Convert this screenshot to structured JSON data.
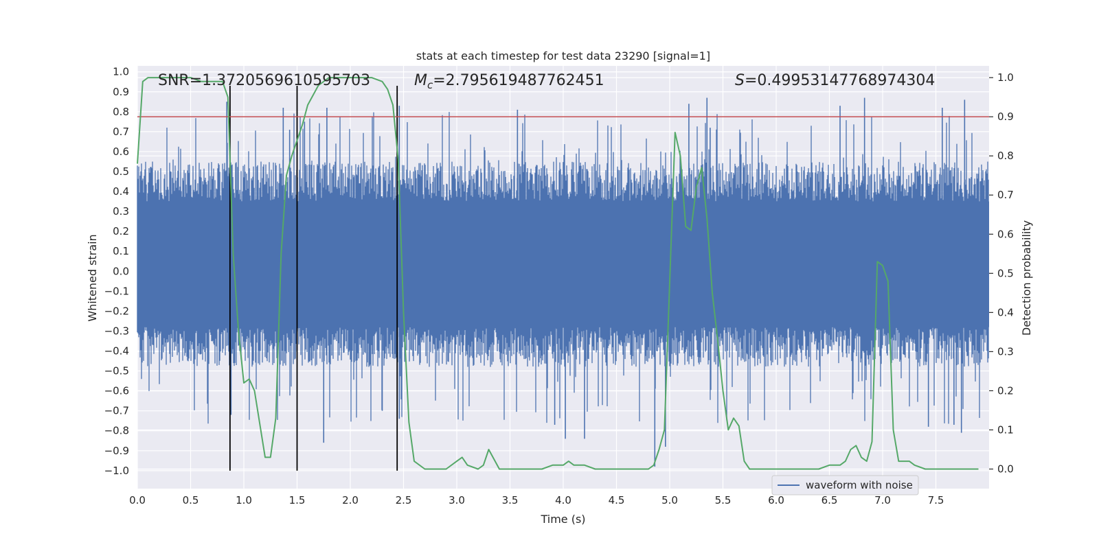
{
  "chart_data": {
    "type": "line",
    "title": "stats at each timestep for test data 23290 [signal=1]",
    "xlabel": "Time (s)",
    "ylabel": "Whitened strain",
    "y2label": "Detection probability",
    "xlim": [
      0.0,
      8.0
    ],
    "ylim": [
      -1.09,
      1.03
    ],
    "y2lim": [
      -0.05,
      1.03
    ],
    "x_ticks": [
      0.0,
      0.5,
      1.0,
      1.5,
      2.0,
      2.5,
      3.0,
      3.5,
      4.0,
      4.5,
      5.0,
      5.5,
      6.0,
      6.5,
      7.0,
      7.5
    ],
    "x_tick_labels": [
      "0.0",
      "0.5",
      "1.0",
      "1.5",
      "2.0",
      "2.5",
      "3.0",
      "3.5",
      "4.0",
      "4.5",
      "5.0",
      "5.5",
      "6.0",
      "6.5",
      "7.0",
      "7.5"
    ],
    "y_ticks": [
      1.0,
      0.9,
      0.8,
      0.7,
      0.6,
      0.5,
      0.4,
      0.3,
      0.2,
      0.1,
      0.0,
      -0.1,
      -0.2,
      -0.3,
      -0.4,
      -0.5,
      -0.6,
      -0.7,
      -0.8,
      -0.9,
      -1.0
    ],
    "y_tick_labels": [
      "1.0",
      "0.9",
      "0.8",
      "0.7",
      "0.6",
      "0.5",
      "0.4",
      "0.3",
      "0.2",
      "0.1",
      "0.0",
      "−0.1",
      "−0.2",
      "−0.3",
      "−0.4",
      "−0.5",
      "−0.6",
      "−0.7",
      "−0.8",
      "−0.9",
      "−1.0"
    ],
    "y2_ticks": [
      1.0,
      0.9,
      0.8,
      0.7,
      0.6,
      0.5,
      0.4,
      0.3,
      0.2,
      0.1,
      0.0
    ],
    "y2_tick_labels": [
      "1.0",
      "0.9",
      "0.8",
      "0.7",
      "0.6",
      "0.5",
      "0.4",
      "0.3",
      "0.2",
      "0.1",
      "0.0"
    ],
    "annotations": {
      "snr": "SNR=1.3720569610595703",
      "mc_symbol": "M",
      "mc_sub": "c",
      "mc_value": "=2.795619487762451",
      "s_symbol": "S",
      "s_value": "=0.49953147768974304"
    },
    "threshold": {
      "axis": "y2",
      "value": 0.9,
      "color": "#c44e52"
    },
    "vertical_lines": [
      {
        "x": 0.87,
        "ymin": -1.0,
        "ymax": 0.93,
        "color": "#000000"
      },
      {
        "x": 1.5,
        "ymin": -1.0,
        "ymax": 0.93,
        "color": "#000000"
      },
      {
        "x": 2.44,
        "ymin": -1.0,
        "ymax": 0.93,
        "color": "#000000"
      }
    ],
    "series": [
      {
        "name": "waveform with noise",
        "axis": "y",
        "color": "#4c72b0",
        "kind": "noise-envelope",
        "core_min": -0.43,
        "core_max": 0.5,
        "peaks": [
          {
            "x": 0.84,
            "y": 0.85
          },
          {
            "x": 0.88,
            "y": -0.72
          },
          {
            "x": 1.37,
            "y": 0.82
          },
          {
            "x": 1.43,
            "y": 0.71
          },
          {
            "x": 1.57,
            "y": 0.75
          },
          {
            "x": 1.75,
            "y": -0.86
          },
          {
            "x": 1.78,
            "y": 0.82
          },
          {
            "x": 2.3,
            "y": -0.7
          },
          {
            "x": 2.46,
            "y": 0.83
          },
          {
            "x": 2.46,
            "y": -0.74
          },
          {
            "x": 3.57,
            "y": 0.81
          },
          {
            "x": 3.92,
            "y": -0.77
          },
          {
            "x": 4.02,
            "y": -0.84
          },
          {
            "x": 4.2,
            "y": -0.84
          },
          {
            "x": 4.86,
            "y": -0.98
          },
          {
            "x": 4.96,
            "y": -0.88
          },
          {
            "x": 5.18,
            "y": 0.84
          },
          {
            "x": 5.35,
            "y": 0.87
          },
          {
            "x": 5.38,
            "y": 0.72
          },
          {
            "x": 6.6,
            "y": 0.83
          },
          {
            "x": 6.83,
            "y": 0.87
          },
          {
            "x": 7.43,
            "y": -0.78
          },
          {
            "x": 7.56,
            "y": 0.82
          },
          {
            "x": 7.67,
            "y": -0.77
          },
          {
            "x": 7.74,
            "y": -0.81
          },
          {
            "x": 7.77,
            "y": 0.86
          }
        ]
      },
      {
        "name": "detection probability",
        "axis": "y2",
        "color": "#55a868",
        "x": [
          0.0,
          0.05,
          0.1,
          0.2,
          0.3,
          0.4,
          0.5,
          0.6,
          0.7,
          0.8,
          0.85,
          0.9,
          0.95,
          1.0,
          1.05,
          1.1,
          1.2,
          1.25,
          1.3,
          1.35,
          1.4,
          1.45,
          1.5,
          1.55,
          1.6,
          1.7,
          1.8,
          1.9,
          1.95,
          2.0,
          2.1,
          2.2,
          2.3,
          2.35,
          2.4,
          2.45,
          2.5,
          2.55,
          2.6,
          2.7,
          2.8,
          2.9,
          3.0,
          3.05,
          3.1,
          3.2,
          3.25,
          3.3,
          3.4,
          3.5,
          3.6,
          3.7,
          3.8,
          3.9,
          4.0,
          4.05,
          4.1,
          4.2,
          4.3,
          4.4,
          4.5,
          4.6,
          4.7,
          4.8,
          4.85,
          4.9,
          4.95,
          5.05,
          5.1,
          5.15,
          5.2,
          5.25,
          5.3,
          5.35,
          5.4,
          5.45,
          5.5,
          5.55,
          5.6,
          5.65,
          5.7,
          5.75,
          5.8,
          5.9,
          6.0,
          6.1,
          6.2,
          6.3,
          6.4,
          6.5,
          6.55,
          6.6,
          6.65,
          6.7,
          6.75,
          6.8,
          6.85,
          6.9,
          6.95,
          7.0,
          7.05,
          7.1,
          7.15,
          7.2,
          7.25,
          7.3,
          7.4,
          7.5,
          7.6,
          7.7,
          7.8,
          7.9
        ],
        "values": [
          0.78,
          0.99,
          1.0,
          1.0,
          1.0,
          1.0,
          1.0,
          0.99,
          0.99,
          0.99,
          0.95,
          0.55,
          0.35,
          0.22,
          0.23,
          0.2,
          0.03,
          0.03,
          0.13,
          0.55,
          0.75,
          0.8,
          0.84,
          0.88,
          0.93,
          0.98,
          1.0,
          1.0,
          1.0,
          1.0,
          1.0,
          1.0,
          0.99,
          0.97,
          0.93,
          0.79,
          0.4,
          0.12,
          0.02,
          0.0,
          0.0,
          0.0,
          0.02,
          0.03,
          0.01,
          0.0,
          0.01,
          0.05,
          0.0,
          0.0,
          0.0,
          0.0,
          0.0,
          0.01,
          0.01,
          0.02,
          0.01,
          0.01,
          0.0,
          0.0,
          0.0,
          0.0,
          0.0,
          0.0,
          0.01,
          0.05,
          0.1,
          0.86,
          0.8,
          0.62,
          0.61,
          0.72,
          0.77,
          0.64,
          0.45,
          0.33,
          0.2,
          0.1,
          0.13,
          0.11,
          0.02,
          0.0,
          0.0,
          0.0,
          0.0,
          0.0,
          0.0,
          0.0,
          0.0,
          0.01,
          0.01,
          0.01,
          0.02,
          0.05,
          0.06,
          0.03,
          0.02,
          0.07,
          0.53,
          0.52,
          0.48,
          0.1,
          0.02,
          0.02,
          0.02,
          0.01,
          0.0,
          0.0,
          0.0,
          0.0,
          0.0,
          0.0
        ]
      }
    ],
    "legend": {
      "position": "lower-right",
      "entries": [
        "waveform with noise"
      ]
    }
  },
  "colors": {
    "plot_bg": "#eaeaf2",
    "grid": "#ffffff",
    "waveform": "#4c72b0",
    "probability": "#55a868",
    "threshold": "#c44e52",
    "text": "#262626"
  }
}
